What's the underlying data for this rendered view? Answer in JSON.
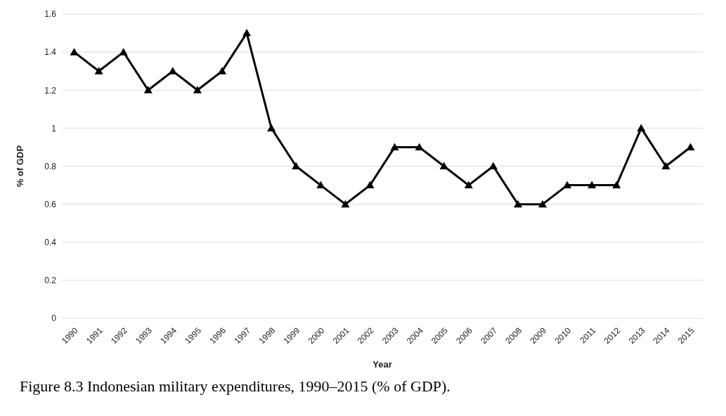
{
  "chart_data": {
    "type": "line",
    "xlabel": "Year",
    "ylabel": "% of GDP",
    "categories": [
      "1990",
      "1991",
      "1992",
      "1993",
      "1994",
      "1995",
      "1996",
      "1997",
      "1998",
      "1999",
      "2000",
      "2001",
      "2002",
      "2003",
      "2004",
      "2005",
      "2006",
      "2007",
      "2008",
      "2009",
      "2010",
      "2011",
      "2012",
      "2013",
      "2014",
      "2015"
    ],
    "series": [
      {
        "color": "#000000",
        "values": [
          1.4,
          1.3,
          1.4,
          1.2,
          1.3,
          1.2,
          1.3,
          1.5,
          1.0,
          0.8,
          0.7,
          0.6,
          0.7,
          0.9,
          0.9,
          0.8,
          0.7,
          0.8,
          0.6,
          0.6,
          0.7,
          0.7,
          0.7,
          1.0,
          0.8,
          0.9
        ]
      }
    ],
    "ylim": [
      0,
      1.6
    ],
    "yticks": [
      0,
      0.2,
      0.4,
      0.6,
      0.8,
      1,
      1.2,
      1.4,
      1.6
    ],
    "grid": "y",
    "marker": "triangle",
    "line_style": "solid",
    "annotations": [
      "Figure 8.3 Indonesian military expenditures, 1990–2015 (% of GDP)."
    ]
  }
}
